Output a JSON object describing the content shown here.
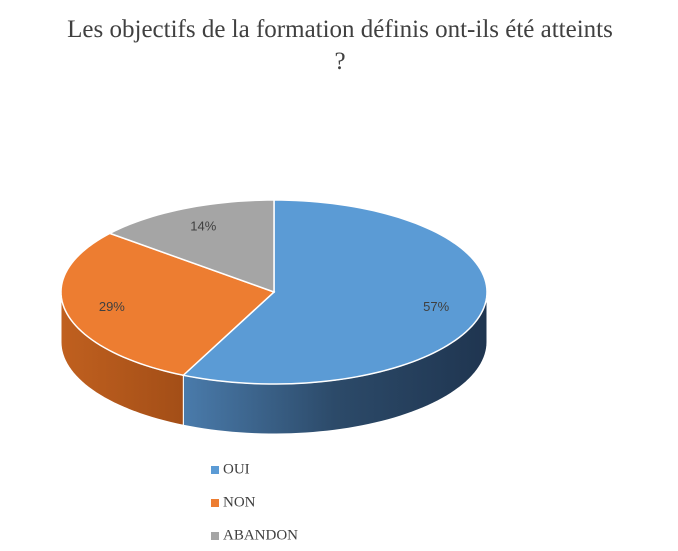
{
  "chart_data": {
    "type": "pie3d",
    "title": "Les objectifs de la formation définis ont-ils été atteints ?",
    "categories": [
      "OUI",
      "NON",
      "ABANDON"
    ],
    "values": [
      57,
      29,
      14
    ],
    "value_labels": [
      "57%",
      "29%",
      "14%"
    ],
    "colors": [
      "#5b9bd5",
      "#ed7d31",
      "#a5a5a5"
    ],
    "legend": "bottom"
  }
}
